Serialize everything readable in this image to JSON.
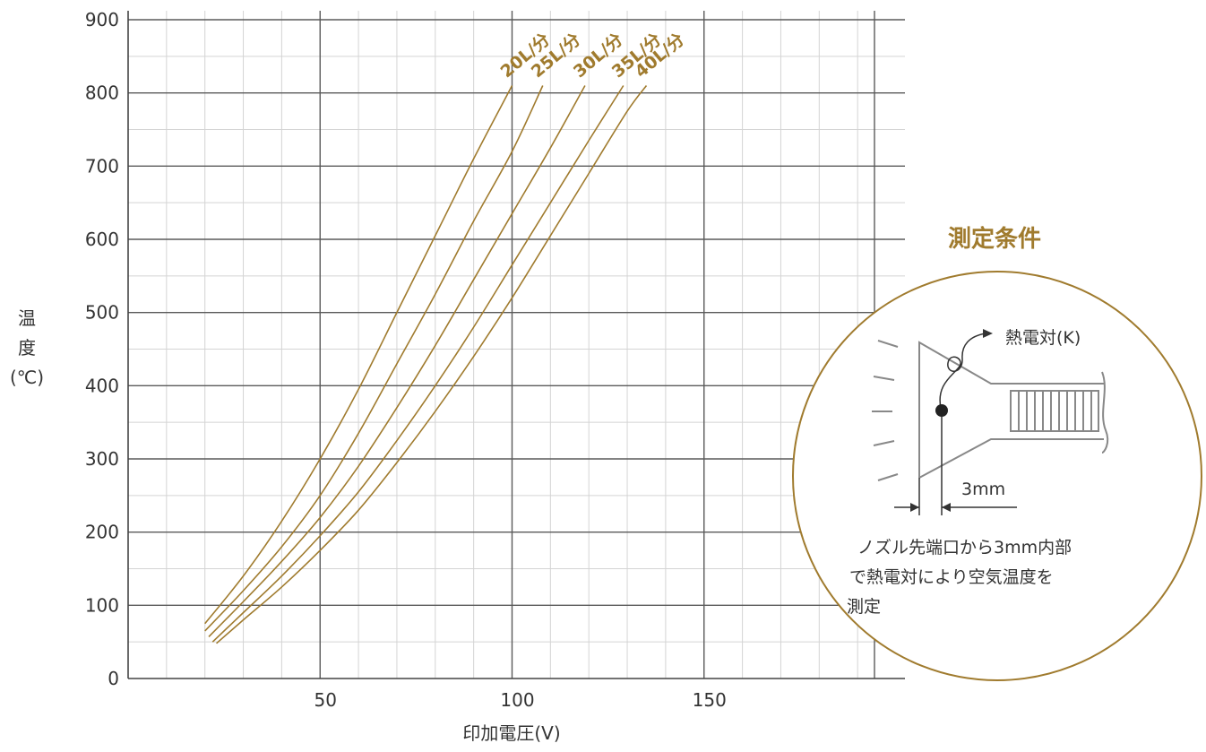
{
  "chart_data": {
    "type": "line",
    "title": "",
    "xlabel": "印加電圧(V)",
    "ylabel": "温度(℃)",
    "ylabel_chars": [
      "温",
      "度",
      "(℃)"
    ],
    "xlim": [
      0,
      200
    ],
    "ylim": [
      0,
      900
    ],
    "xticks": [
      50,
      100,
      150
    ],
    "yticks": [
      0,
      100,
      200,
      300,
      400,
      500,
      600,
      700,
      800,
      900
    ],
    "grid": true,
    "line_color": "#a07b2e",
    "series": [
      {
        "name": "20L/分",
        "points": [
          [
            20,
            75
          ],
          [
            30,
            140
          ],
          [
            40,
            215
          ],
          [
            50,
            300
          ],
          [
            60,
            395
          ],
          [
            70,
            500
          ],
          [
            80,
            605
          ],
          [
            90,
            710
          ],
          [
            100,
            810
          ]
        ]
      },
      {
        "name": "25L/分",
        "points": [
          [
            20,
            65
          ],
          [
            30,
            120
          ],
          [
            40,
            180
          ],
          [
            50,
            250
          ],
          [
            60,
            335
          ],
          [
            70,
            430
          ],
          [
            80,
            525
          ],
          [
            90,
            625
          ],
          [
            100,
            720
          ],
          [
            108,
            810
          ]
        ]
      },
      {
        "name": "30L/分",
        "points": [
          [
            21,
            57
          ],
          [
            30,
            105
          ],
          [
            40,
            160
          ],
          [
            50,
            220
          ],
          [
            60,
            290
          ],
          [
            70,
            370
          ],
          [
            80,
            455
          ],
          [
            90,
            545
          ],
          [
            100,
            635
          ],
          [
            110,
            725
          ],
          [
            119,
            810
          ]
        ]
      },
      {
        "name": "35L/分",
        "points": [
          [
            22,
            50
          ],
          [
            30,
            90
          ],
          [
            40,
            140
          ],
          [
            50,
            195
          ],
          [
            60,
            255
          ],
          [
            70,
            325
          ],
          [
            80,
            400
          ],
          [
            90,
            480
          ],
          [
            100,
            565
          ],
          [
            110,
            650
          ],
          [
            120,
            735
          ],
          [
            129,
            810
          ]
        ]
      },
      {
        "name": "40L/分",
        "points": [
          [
            23,
            48
          ],
          [
            30,
            80
          ],
          [
            40,
            125
          ],
          [
            50,
            175
          ],
          [
            60,
            230
          ],
          [
            70,
            295
          ],
          [
            80,
            365
          ],
          [
            90,
            440
          ],
          [
            100,
            520
          ],
          [
            110,
            605
          ],
          [
            120,
            690
          ],
          [
            130,
            775
          ],
          [
            135,
            810
          ]
        ]
      }
    ]
  },
  "conditions": {
    "title": "測定条件",
    "thermocouple_label": "熱電対(K)",
    "distance_label": "3mm",
    "description_lines": [
      "ノズル先端口から3mm内部",
      "で熱電対により空気温度を",
      "測定"
    ],
    "border_color": "#a07b2e"
  }
}
